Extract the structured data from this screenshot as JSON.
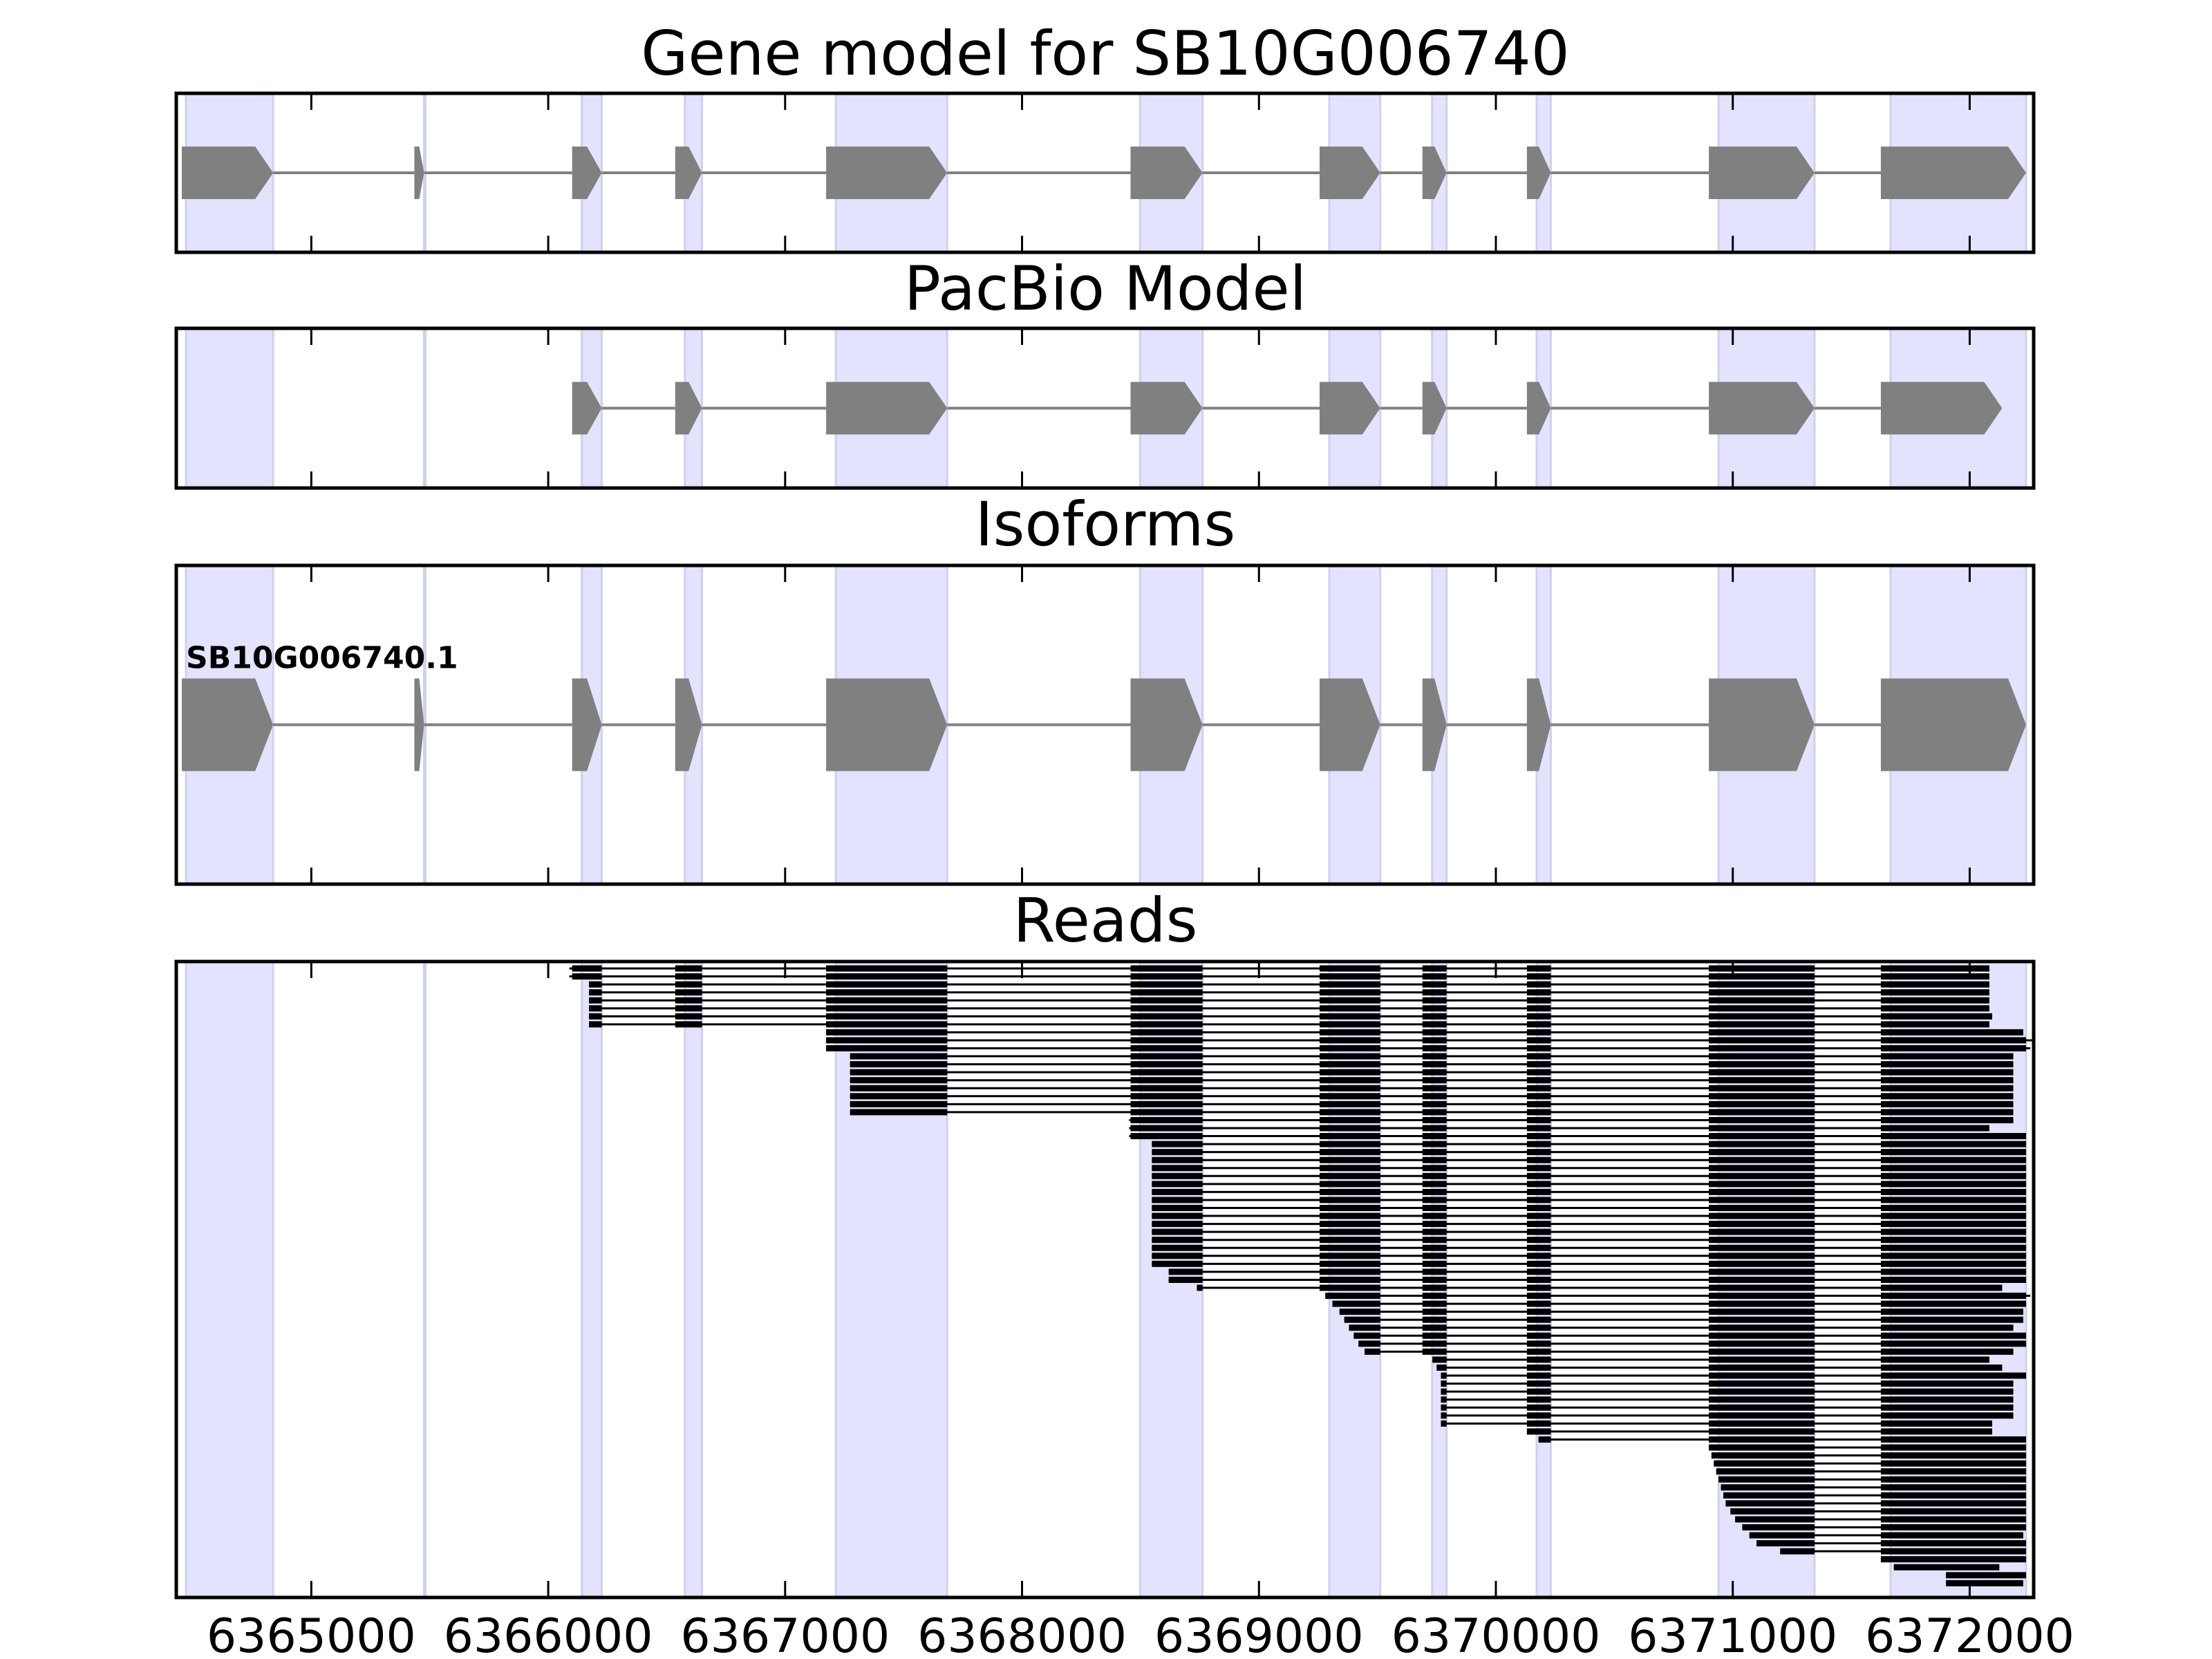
{
  "chart_data": {
    "type": "gene-track",
    "xlim": [
      6364430,
      6372270
    ],
    "xticks": [
      6365000,
      6366000,
      6367000,
      6368000,
      6369000,
      6370000,
      6371000,
      6372000
    ],
    "band_color": "#e3e3ff",
    "exon_color": "#808080",
    "read_color": "#000000",
    "gene_model": {
      "title": "Gene model for SB10G006740",
      "exons": [
        [
          6364430,
          6364839
        ],
        [
          6365435,
          6365476
        ],
        [
          6366101,
          6366226
        ],
        [
          6366536,
          6366649
        ],
        [
          6367173,
          6367684
        ],
        [
          6368458,
          6368762
        ],
        [
          6369256,
          6369512
        ],
        [
          6369690,
          6369792
        ],
        [
          6370131,
          6370232
        ],
        [
          6370899,
          6371345
        ],
        [
          6371625,
          6372238
        ]
      ]
    },
    "pacbio": {
      "title": "PacBio Model",
      "exons": [
        [
          6366101,
          6366226
        ],
        [
          6366536,
          6366649
        ],
        [
          6367173,
          6367684
        ],
        [
          6368458,
          6368762
        ],
        [
          6369256,
          6369512
        ],
        [
          6369690,
          6369792
        ],
        [
          6370131,
          6370232
        ],
        [
          6370899,
          6371345
        ],
        [
          6371625,
          6372137
        ]
      ]
    },
    "isoforms": {
      "title": "Isoforms",
      "isoforms": [
        {
          "name": "SB10G006740.1",
          "exons": [
            [
              6364430,
              6364839
            ],
            [
              6365435,
              6365476
            ],
            [
              6366101,
              6366226
            ],
            [
              6366536,
              6366649
            ],
            [
              6367173,
              6367684
            ],
            [
              6368458,
              6368762
            ],
            [
              6369256,
              6369512
            ],
            [
              6369690,
              6369792
            ],
            [
              6370131,
              6370232
            ],
            [
              6370899,
              6371345
            ],
            [
              6371625,
              6372238
            ]
          ]
        }
      ]
    },
    "reads": {
      "title": "Reads",
      "reads": [
        [
          6366089,
          6372083
        ],
        [
          6366089,
          6372083
        ],
        [
          6366172,
          6372083
        ],
        [
          6366172,
          6372083
        ],
        [
          6366172,
          6372083
        ],
        [
          6366172,
          6372083
        ],
        [
          6366172,
          6372095
        ],
        [
          6366172,
          6372083
        ],
        [
          6367173,
          6372226
        ],
        [
          6367173,
          6372268
        ],
        [
          6367173,
          6372256
        ],
        [
          6367274,
          6372184
        ],
        [
          6367274,
          6372184
        ],
        [
          6367274,
          6372184
        ],
        [
          6367274,
          6372184
        ],
        [
          6367274,
          6372184
        ],
        [
          6367274,
          6372184
        ],
        [
          6367274,
          6372184
        ],
        [
          6367274,
          6372184
        ],
        [
          6368452,
          6372184
        ],
        [
          6368452,
          6372083
        ],
        [
          6368452,
          6372238
        ],
        [
          6368548,
          6372238
        ],
        [
          6368548,
          6372238
        ],
        [
          6368548,
          6372238
        ],
        [
          6368548,
          6372238
        ],
        [
          6368548,
          6372238
        ],
        [
          6368548,
          6372238
        ],
        [
          6368548,
          6372238
        ],
        [
          6368548,
          6372238
        ],
        [
          6368548,
          6372238
        ],
        [
          6368548,
          6372238
        ],
        [
          6368548,
          6372238
        ],
        [
          6368548,
          6372238
        ],
        [
          6368548,
          6372238
        ],
        [
          6368548,
          6372238
        ],
        [
          6368548,
          6372238
        ],
        [
          6368548,
          6372238
        ],
        [
          6368619,
          6372238
        ],
        [
          6368619,
          6372238
        ],
        [
          6368738,
          6372137
        ],
        [
          6369280,
          6372256
        ],
        [
          6369310,
          6372238
        ],
        [
          6369340,
          6372226
        ],
        [
          6369360,
          6372226
        ],
        [
          6369380,
          6372184
        ],
        [
          6369400,
          6372238
        ],
        [
          6369420,
          6372238
        ],
        [
          6369446,
          6372184
        ],
        [
          6369732,
          6372083
        ],
        [
          6369750,
          6372137
        ],
        [
          6369768,
          6372238
        ],
        [
          6369768,
          6372184
        ],
        [
          6369768,
          6372184
        ],
        [
          6369768,
          6372184
        ],
        [
          6369768,
          6372184
        ],
        [
          6369768,
          6372184
        ],
        [
          6369768,
          6372095
        ],
        [
          6370131,
          6372095
        ],
        [
          6370180,
          6372238
        ],
        [
          6370899,
          6372238
        ],
        [
          6370910,
          6372238
        ],
        [
          6370920,
          6372238
        ],
        [
          6370930,
          6372238
        ],
        [
          6370940,
          6372238
        ],
        [
          6370950,
          6372238
        ],
        [
          6370960,
          6372238
        ],
        [
          6370970,
          6372238
        ],
        [
          6370990,
          6372238
        ],
        [
          6371010,
          6372238
        ],
        [
          6371040,
          6372238
        ],
        [
          6371070,
          6372226
        ],
        [
          6371100,
          6372238
        ],
        [
          6371200,
          6372238
        ],
        [
          6371625,
          6372238
        ],
        [
          6371680,
          6372125
        ],
        [
          6371900,
          6372238
        ],
        [
          6371900,
          6372226
        ]
      ]
    }
  }
}
